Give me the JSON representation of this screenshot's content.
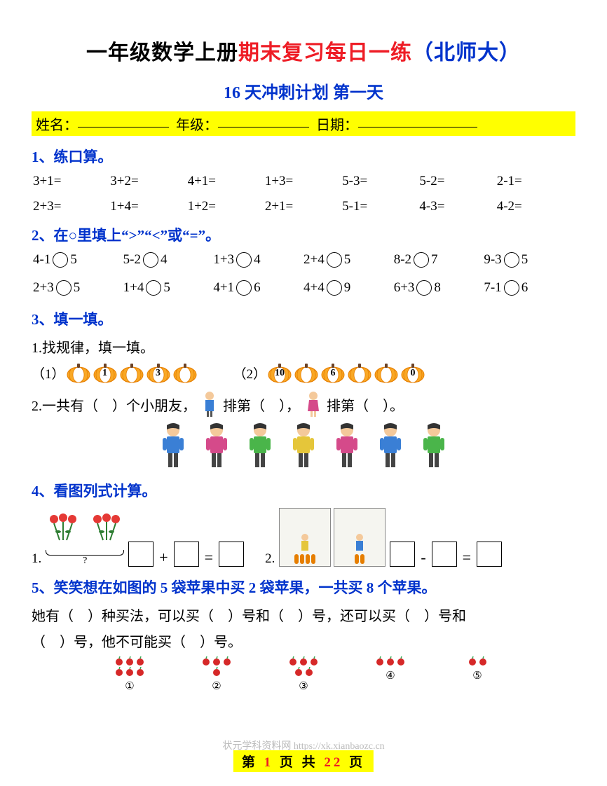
{
  "title": {
    "part1": "一年级数学上册",
    "part2": "期末复习每日一练",
    "part3": "（北师大）"
  },
  "subtitle": "16 天冲刺计划 第一天",
  "info": {
    "name_label": "姓名：",
    "grade_label": "年级：",
    "date_label": "日期："
  },
  "q1": {
    "title": "1、练口算。",
    "row1": [
      "3+1=",
      "3+2=",
      "4+1=",
      "1+3=",
      "5-3=",
      "5-2=",
      "2-1="
    ],
    "row2": [
      "2+3=",
      "1+4=",
      "1+2=",
      "2+1=",
      "5-1=",
      "4-3=",
      "4-2="
    ]
  },
  "q2": {
    "title": "2、在○里填上“>”“<”或“=”。",
    "row1": [
      {
        "l": "4-1",
        "r": "5"
      },
      {
        "l": "5-2",
        "r": "4"
      },
      {
        "l": "1+3",
        "r": "4"
      },
      {
        "l": "2+4",
        "r": "5"
      },
      {
        "l": "8-2",
        "r": "7"
      },
      {
        "l": "9-3",
        "r": "5"
      }
    ],
    "row2": [
      {
        "l": "2+3",
        "r": "5"
      },
      {
        "l": "1+4",
        "r": "5"
      },
      {
        "l": "4+1",
        "r": "6"
      },
      {
        "l": "4+4",
        "r": "9"
      },
      {
        "l": "6+3",
        "r": "8"
      },
      {
        "l": "7-1",
        "r": "6"
      }
    ]
  },
  "q3": {
    "title": "3、填一填。",
    "sub1": "1.找规律，填一填。",
    "seq1_label": "（1）",
    "seq1_nums": [
      "",
      "1",
      "",
      "3",
      ""
    ],
    "seq2_label": "（2）",
    "seq2_nums": [
      "10",
      "",
      "6",
      "",
      "",
      "0"
    ],
    "sub2_a": "2.一共有（　）个小朋友，",
    "sub2_b": "排第（　），",
    "sub2_c": "排第（　）。",
    "kid_colors": [
      "#3a7fd5",
      "#d54a8a",
      "#4ab54a",
      "#e5c63a",
      "#d54a8a",
      "#3a7fd5",
      "#4ab54a"
    ]
  },
  "q4": {
    "title": "4、看图列式计算。",
    "label1": "1.",
    "label2": "2.",
    "op_plus": "+",
    "op_minus": "-",
    "op_eq": "="
  },
  "q5": {
    "title": "5、笑笑想在如图的 5 袋苹果中买 2 袋苹果，一共买 8 个苹果。",
    "line1": "她有（　）种买法，可以买（　）号和（　）号，还可以买（　）号和",
    "line2": "（　）号，他不可能买（　）号。",
    "groups": [
      {
        "count": 6,
        "label": "①"
      },
      {
        "count": 4,
        "label": "②"
      },
      {
        "count": 5,
        "label": "③"
      },
      {
        "count": 3,
        "label": "④"
      },
      {
        "count": 2,
        "label": "⑤"
      }
    ],
    "apple_color": "#d62828"
  },
  "colors": {
    "pumpkin_fill": "#f9a825",
    "pumpkin_stroke": "#e67e00",
    "flower_red": "#e53935",
    "flower_green": "#2e7d32"
  },
  "watermark": "状元学科资料网 https://xk.xianbaozc.cn",
  "footer": {
    "t1": "第",
    "n1": "1",
    "t2": "页 共",
    "n2": "22",
    "t3": "页"
  }
}
